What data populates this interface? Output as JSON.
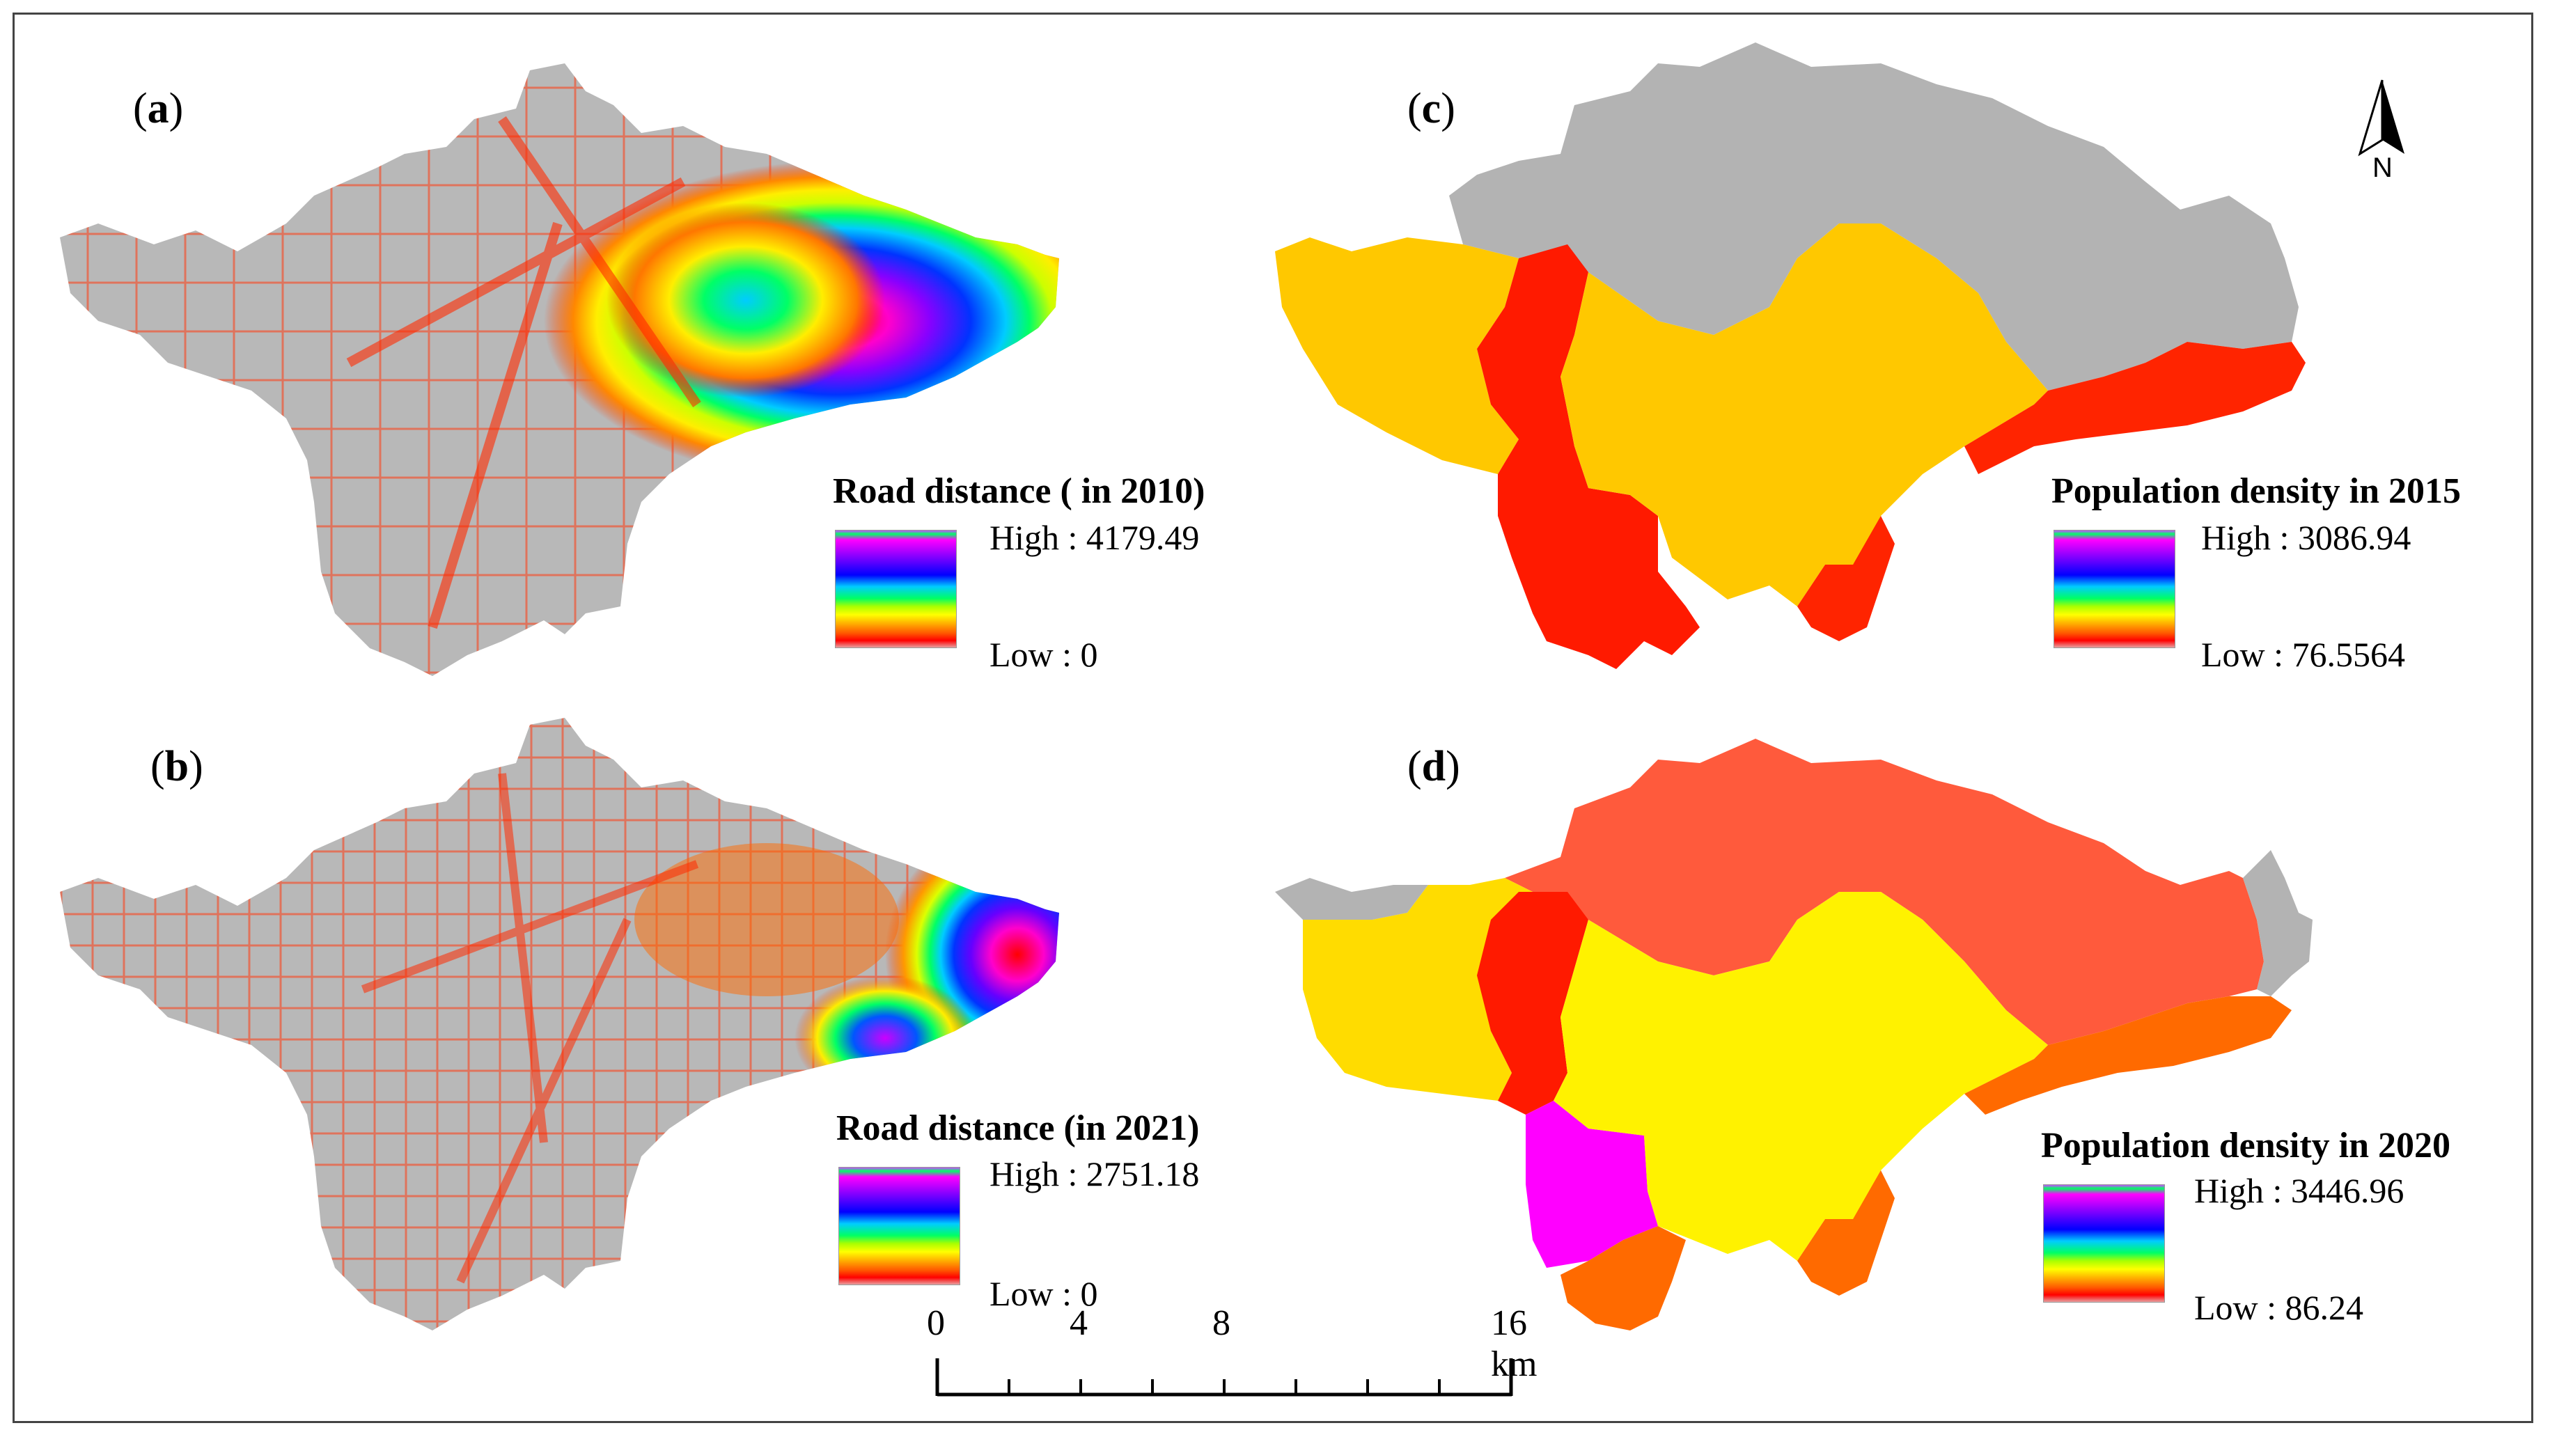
{
  "panels": {
    "a": {
      "label_open": "(",
      "label_letter": "a",
      "label_close": ")",
      "legend_title": "Road distance ( in 2010)",
      "legend_high": "High : 4179.49",
      "legend_low": "Low : 0"
    },
    "b": {
      "label_open": "(",
      "label_letter": "b",
      "label_close": ")",
      "legend_title": "Road distance (in 2021)",
      "legend_high": "High : 2751.18",
      "legend_low": "Low : 0"
    },
    "c": {
      "label_open": "(",
      "label_letter": "c",
      "label_close": ")",
      "legend_title": "Population density in 2015",
      "legend_high": "High : 3086.94",
      "legend_low": "Low : 76.5564"
    },
    "d": {
      "label_open": "(",
      "label_letter": "d",
      "label_close": ")",
      "legend_title": "Population density in 2020",
      "legend_high": "High : 3446.96",
      "legend_low": "Low : 86.24"
    }
  },
  "north_arrow": {
    "letter": "N",
    "icon": "north-arrow-icon"
  },
  "scale_bar": {
    "labels": [
      "0",
      "4",
      "8",
      "16 km"
    ]
  },
  "colors": {
    "road_grey": "#b5b5b5",
    "region_grey": "#b3b3b3",
    "red": "#ff1a00",
    "orange_red": "#ff3a10",
    "amber": "#ffc800",
    "yellow": "#fff200",
    "coral": "#ff5a3c",
    "dark_orange": "#ff6a00",
    "magenta": "#ff00ff"
  }
}
